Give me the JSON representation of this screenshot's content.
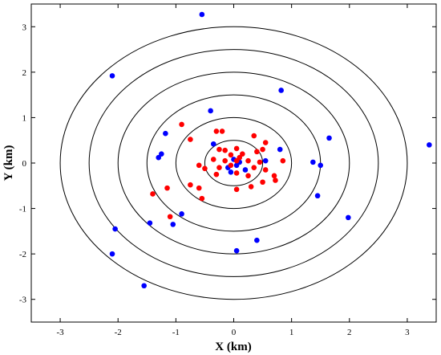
{
  "chart_data": {
    "type": "scatter",
    "title": "",
    "xlabel": "X (km)",
    "ylabel": "Y (km)",
    "xlim": [
      -3.5,
      3.5
    ],
    "ylim": [
      -3.5,
      3.5
    ],
    "xticks": [
      -3,
      -2,
      -1,
      0,
      1,
      2,
      3
    ],
    "yticks": [
      -3,
      -2,
      -1,
      0,
      1,
      2,
      3
    ],
    "grid": false,
    "legend": "none",
    "circles": {
      "center": [
        0,
        0
      ],
      "radii": [
        0.5,
        1.0,
        1.5,
        2.0,
        2.5,
        3.0
      ],
      "color": "#000000"
    },
    "series": [
      {
        "color": "#0000ff",
        "points": [
          [
            -0.55,
            3.27
          ],
          [
            -2.1,
            1.92
          ],
          [
            0.82,
            1.6
          ],
          [
            -0.4,
            1.15
          ],
          [
            -1.18,
            0.65
          ],
          [
            1.65,
            0.55
          ],
          [
            3.38,
            0.4
          ],
          [
            0.8,
            0.3
          ],
          [
            -1.25,
            0.2
          ],
          [
            -1.3,
            0.12
          ],
          [
            -0.35,
            0.42
          ],
          [
            1.37,
            0.02
          ],
          [
            1.5,
            -0.05
          ],
          [
            0.55,
            0.05
          ],
          [
            0.1,
            0.02
          ],
          [
            0.05,
            -0.05
          ],
          [
            -0.1,
            -0.1
          ],
          [
            0.2,
            -0.15
          ],
          [
            -0.05,
            -0.2
          ],
          [
            0.0,
            0.08
          ],
          [
            1.45,
            -0.72
          ],
          [
            1.98,
            -1.2
          ],
          [
            -0.9,
            -1.12
          ],
          [
            -1.45,
            -1.32
          ],
          [
            -1.05,
            -1.35
          ],
          [
            -2.05,
            -1.45
          ],
          [
            0.4,
            -1.7
          ],
          [
            0.05,
            -1.93
          ],
          [
            -2.1,
            -2.0
          ],
          [
            -1.55,
            -2.7
          ]
        ]
      },
      {
        "color": "#ff0000",
        "points": [
          [
            -0.9,
            0.85
          ],
          [
            -0.3,
            0.7
          ],
          [
            -0.2,
            0.7
          ],
          [
            0.35,
            0.6
          ],
          [
            -0.75,
            0.52
          ],
          [
            0.55,
            0.45
          ],
          [
            -0.25,
            0.3
          ],
          [
            0.5,
            0.3
          ],
          [
            0.05,
            0.32
          ],
          [
            -0.15,
            0.28
          ],
          [
            0.4,
            0.25
          ],
          [
            0.15,
            0.2
          ],
          [
            -0.05,
            0.18
          ],
          [
            0.85,
            0.05
          ],
          [
            -0.35,
            0.08
          ],
          [
            -0.15,
            0.05
          ],
          [
            0.05,
            0.05
          ],
          [
            0.25,
            0.05
          ],
          [
            0.45,
            0.02
          ],
          [
            -0.6,
            -0.05
          ],
          [
            -0.5,
            -0.12
          ],
          [
            -0.25,
            -0.1
          ],
          [
            0.35,
            -0.1
          ],
          [
            0.7,
            -0.28
          ],
          [
            0.72,
            -0.38
          ],
          [
            -0.3,
            -0.25
          ],
          [
            0.05,
            -0.22
          ],
          [
            0.25,
            -0.28
          ],
          [
            -0.75,
            -0.48
          ],
          [
            -0.6,
            -0.55
          ],
          [
            0.5,
            -0.42
          ],
          [
            -1.15,
            -0.55
          ],
          [
            0.05,
            -0.58
          ],
          [
            0.3,
            -0.52
          ],
          [
            -1.4,
            -0.68
          ],
          [
            -0.55,
            -0.78
          ],
          [
            -1.1,
            -1.18
          ],
          [
            0.55,
            -0.15
          ],
          [
            0.1,
            0.12
          ],
          [
            -0.05,
            -0.05
          ]
        ]
      }
    ]
  }
}
